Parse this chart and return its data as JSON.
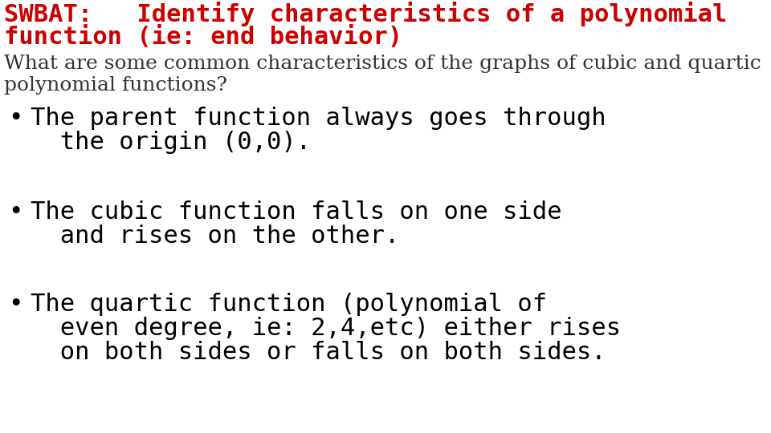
{
  "background_color": "#ffffff",
  "swbat_line1": "SWBAT:   Identify characteristics of a polynomial",
  "swbat_line2": "function (ie: end behavior)",
  "question_line1": "What are some common characteristics of the graphs of cubic and quartic",
  "question_line2": "polynomial functions?",
  "bullet1_line1": "The parent function always goes through",
  "bullet1_line2": "  the origin (0,0).",
  "bullet2_line1": "The cubic function falls on one side",
  "bullet2_line2": "  and rises on the other.",
  "bullet3_line1": "The quartic function (polynomial of",
  "bullet3_line2": "  even degree, ie: 2,4,etc) either rises",
  "bullet3_line3": "  on both sides or falls on both sides.",
  "swbat_color": "#cc0000",
  "swbat_fontsize": 22,
  "swbat_font": "monospace",
  "question_color": "#333333",
  "question_fontsize": 18,
  "question_font": "DejaVu Serif",
  "bullet_color": "#000000",
  "bullet_fontsize": 22,
  "bullet_font": "monospace",
  "bullet_char": "•"
}
